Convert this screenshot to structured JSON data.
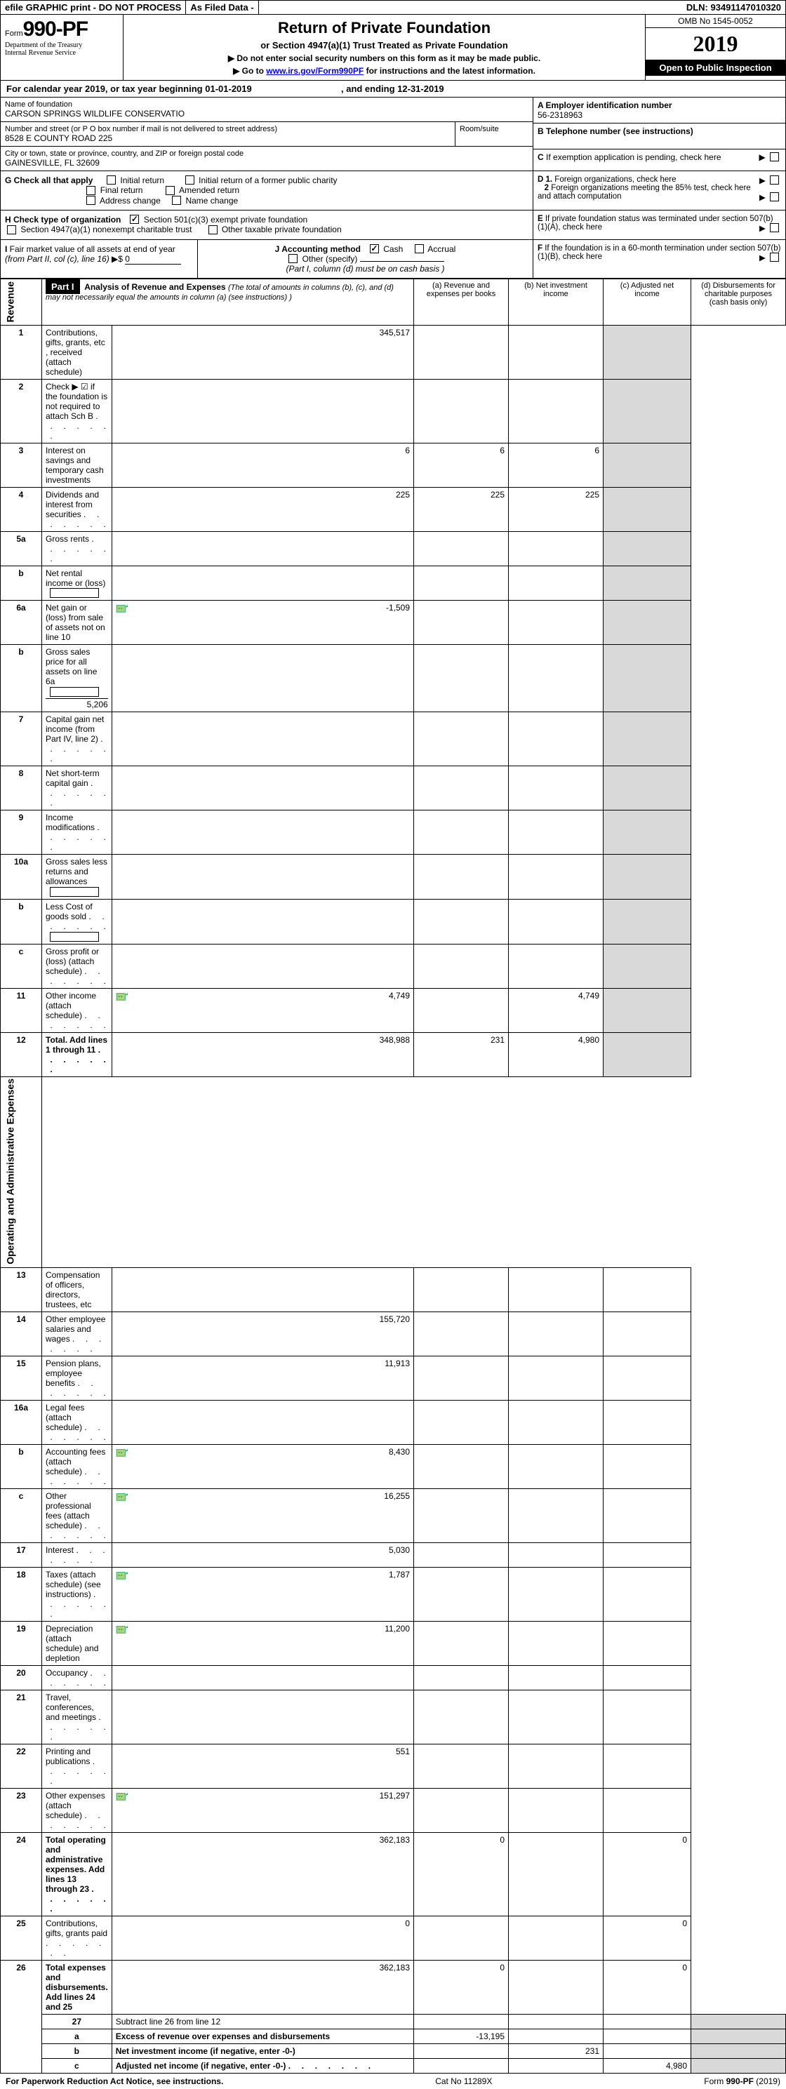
{
  "topbar": {
    "efile": "efile GRAPHIC print - DO NOT PROCESS",
    "asfiled": "As Filed Data -",
    "dln_label": "DLN:",
    "dln": "93491147010320"
  },
  "form": {
    "prefix": "Form",
    "number": "990-PF",
    "dept": "Department of the Treasury",
    "irs": "Internal Revenue Service"
  },
  "title": {
    "main": "Return of Private Foundation",
    "sub": "or Section 4947(a)(1) Trust Treated as Private Foundation",
    "warn1": "Do not enter social security numbers on this form as it may be made public.",
    "warn2_pre": "Go to ",
    "warn2_link": "www.irs.gov/Form990PF",
    "warn2_post": " for instructions and the latest information."
  },
  "yearbox": {
    "omb": "OMB No  1545-0052",
    "year": "2019",
    "inspect": "Open to Public Inspection"
  },
  "calyear": {
    "pre": "For calendar year 2019, or tax year beginning ",
    "begin": "01-01-2019",
    "mid": ", and ending ",
    "end": "12-31-2019"
  },
  "info": {
    "name_label": "Name of foundation",
    "name": "CARSON SPRINGS WILDLIFE CONSERVATIO",
    "addr_label": "Number and street (or P O  box number if mail is not delivered to street address)",
    "room_label": "Room/suite",
    "addr": "8528 E COUNTY ROAD 225",
    "city_label": "City or town, state or province, country, and ZIP or foreign postal code",
    "city": "GAINESVILLE, FL  32609",
    "A_label": "A Employer identification number",
    "A_val": "56-2318963",
    "B_label": "B Telephone number (see instructions)",
    "C_label": "C If exemption application is pending, check here"
  },
  "G": {
    "label": "G Check all that apply",
    "opts": [
      "Initial return",
      "Initial return of a former public charity",
      "Final return",
      "Amended return",
      "Address change",
      "Name change"
    ],
    "D1": "D 1. Foreign organizations, check here",
    "D2": "2  Foreign organizations meeting the 85% test, check here and attach computation"
  },
  "H": {
    "label": "H Check type of organization",
    "o1": "Section 501(c)(3) exempt private foundation",
    "o2": "Section 4947(a)(1) nonexempt charitable trust",
    "o3": "Other taxable private foundation",
    "E": "E  If private foundation status was terminated under section 507(b)(1)(A), check here"
  },
  "I": {
    "label": "I Fair market value of all assets at end of year (from Part II, col  (c), line 16)",
    "dollar": "$",
    "val": "0",
    "J_label": "J Accounting method",
    "cash": "Cash",
    "accrual": "Accrual",
    "other": "Other (specify)",
    "note": "(Part I, column (d) must be on cash basis )",
    "F": "F  If the foundation is in a 60-month termination under section 507(b)(1)(B), check here"
  },
  "part1": {
    "label": "Part I",
    "title": "Analysis of Revenue and Expenses",
    "paren": "(The total of amounts in columns (b), (c), and (d) may not necessarily equal the amounts in column (a) (see instructions) )",
    "col_a": "(a)   Revenue and expenses per books",
    "col_b": "(b)  Net investment income",
    "col_c": "(c)  Adjusted net income",
    "col_d": "(d)  Disbursements for charitable purposes (cash basis only)"
  },
  "sidelabels": {
    "revenue": "Revenue",
    "expenses": "Operating and Administrative Expenses"
  },
  "rows": [
    {
      "n": "1",
      "d": "Contributions, gifts, grants, etc , received (attach schedule)",
      "a": "345,517"
    },
    {
      "n": "2",
      "d": "Check ▶ ☑ if the foundation is not required to attach Sch  B",
      "dots": true
    },
    {
      "n": "3",
      "d": "Interest on savings and temporary cash investments",
      "a": "6",
      "b": "6",
      "c": "6"
    },
    {
      "n": "4",
      "d": "Dividends and interest from securities",
      "dots": true,
      "a": "225",
      "b": "225",
      "c": "225"
    },
    {
      "n": "5a",
      "d": "Gross rents",
      "dots": true
    },
    {
      "n": "b",
      "d": "Net rental income or (loss)",
      "box": true
    },
    {
      "n": "6a",
      "d": "Net gain or (loss) from sale of assets not on line 10",
      "icon": true,
      "a": "-1,509"
    },
    {
      "n": "b",
      "d": "Gross sales price for all assets on line 6a",
      "trail": "5,206",
      "box": true
    },
    {
      "n": "7",
      "d": "Capital gain net income (from Part IV, line 2)",
      "dots": true
    },
    {
      "n": "8",
      "d": "Net short-term capital gain",
      "dots": true
    },
    {
      "n": "9",
      "d": "Income modifications",
      "dots": true
    },
    {
      "n": "10a",
      "d": "Gross sales less returns and allowances",
      "box": true
    },
    {
      "n": "b",
      "d": "Less  Cost of goods sold",
      "dots": true,
      "box": true
    },
    {
      "n": "c",
      "d": "Gross profit or (loss) (attach schedule)",
      "dots": true
    },
    {
      "n": "11",
      "d": "Other income (attach schedule)",
      "dots": true,
      "icon": true,
      "a": "4,749",
      "c": "4,749"
    },
    {
      "n": "12",
      "d": "Total. Add lines 1 through 11",
      "dots": true,
      "bold": true,
      "a": "348,988",
      "b": "231",
      "c": "4,980"
    }
  ],
  "rows2": [
    {
      "n": "13",
      "d": "Compensation of officers, directors, trustees, etc"
    },
    {
      "n": "14",
      "d": "Other employee salaries and wages",
      "dots": true,
      "a": "155,720"
    },
    {
      "n": "15",
      "d": "Pension plans, employee benefits",
      "dots": true,
      "a": "11,913"
    },
    {
      "n": "16a",
      "d": "Legal fees (attach schedule)",
      "dots": true
    },
    {
      "n": "b",
      "d": "Accounting fees (attach schedule)",
      "dots": true,
      "icon": true,
      "a": "8,430"
    },
    {
      "n": "c",
      "d": "Other professional fees (attach schedule)",
      "dots": true,
      "icon": true,
      "a": "16,255"
    },
    {
      "n": "17",
      "d": "Interest",
      "dots": true,
      "a": "5,030"
    },
    {
      "n": "18",
      "d": "Taxes (attach schedule) (see instructions)",
      "dots": true,
      "icon": true,
      "a": "1,787"
    },
    {
      "n": "19",
      "d": "Depreciation (attach schedule) and depletion",
      "icon": true,
      "a": "11,200"
    },
    {
      "n": "20",
      "d": "Occupancy",
      "dots": true
    },
    {
      "n": "21",
      "d": "Travel, conferences, and meetings",
      "dots": true
    },
    {
      "n": "22",
      "d": "Printing and publications",
      "dots": true,
      "a": "551"
    },
    {
      "n": "23",
      "d": "Other expenses (attach schedule)",
      "dots": true,
      "icon": true,
      "a": "151,297"
    },
    {
      "n": "24",
      "d": "Total operating and administrative expenses. Add lines 13 through 23",
      "dots": true,
      "bold": true,
      "a": "362,183",
      "b": "0",
      "d4": "0"
    },
    {
      "n": "25",
      "d": "Contributions, gifts, grants paid",
      "dots": true,
      "a": "0",
      "d4": "0"
    },
    {
      "n": "26",
      "d": "Total expenses and disbursements. Add lines 24 and 25",
      "bold": true,
      "a": "362,183",
      "b": "0",
      "d4": "0"
    }
  ],
  "rows3": [
    {
      "n": "27",
      "d": "Subtract line 26 from line 12"
    },
    {
      "n": "a",
      "d": "Excess of revenue over expenses and disbursements",
      "bold": true,
      "a": "-13,195"
    },
    {
      "n": "b",
      "d": "Net investment income (if negative, enter -0-)",
      "bold": true,
      "b": "231"
    },
    {
      "n": "c",
      "d": "Adjusted net income (if negative, enter -0-)",
      "bold": true,
      "dots": true,
      "c": "4,980"
    }
  ],
  "footer": {
    "left": "For Paperwork Reduction Act Notice, see instructions.",
    "mid": "Cat  No  11289X",
    "right_pre": "Form ",
    "right_form": "990-PF",
    "right_post": " (2019)"
  }
}
